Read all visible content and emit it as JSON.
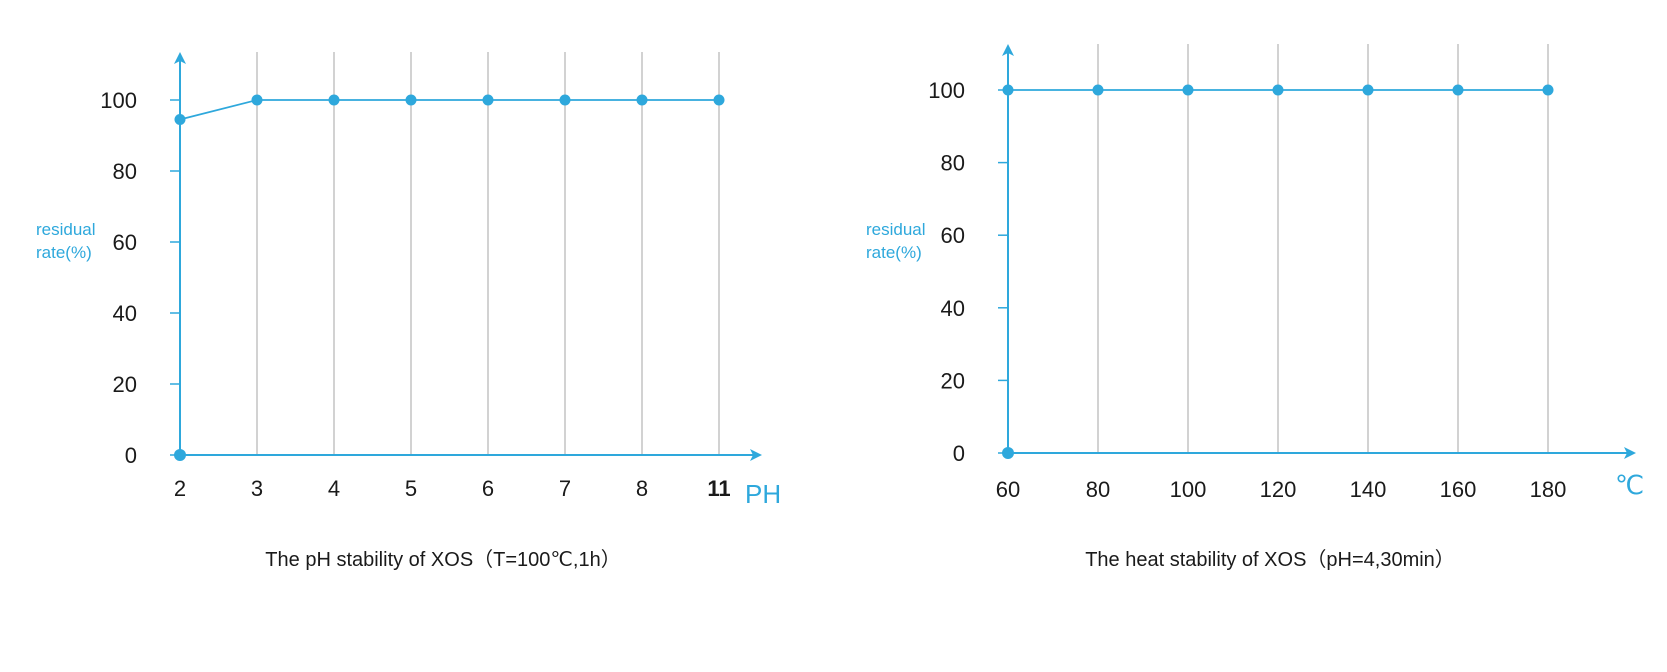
{
  "colors": {
    "accent": "#2ea8dc",
    "grid": "#b5b5b5",
    "text": "#1a1a1a"
  },
  "chart_data": [
    {
      "type": "line",
      "title": "The pH stability of XOS（T=100℃,1h）",
      "xlabel": "PH",
      "ylabel": [
        "residual",
        "rate(%)"
      ],
      "categories": [
        "2",
        "3",
        "4",
        "5",
        "6",
        "7",
        "8",
        "11"
      ],
      "series": [
        {
          "name": "residual rate",
          "values": [
            94.5,
            100,
            100,
            100,
            100,
            100,
            100,
            100
          ]
        }
      ],
      "origin_marker": true,
      "ylim": [
        0,
        110
      ],
      "yticks": [
        0,
        20,
        40,
        60,
        80,
        100
      ],
      "grid": "vertical"
    },
    {
      "type": "line",
      "title": "The heat stability of XOS（pH=4,30min）",
      "xlabel": "℃",
      "ylabel": [
        "residual",
        "rate(%)"
      ],
      "categories": [
        "60",
        "80",
        "100",
        "120",
        "140",
        "160",
        "180"
      ],
      "series": [
        {
          "name": "residual rate",
          "values": [
            100,
            100,
            100,
            100,
            100,
            100,
            100
          ]
        }
      ],
      "origin_marker": true,
      "ylim": [
        0,
        110
      ],
      "yticks": [
        0,
        20,
        40,
        60,
        80,
        100
      ],
      "grid": "vertical"
    }
  ]
}
